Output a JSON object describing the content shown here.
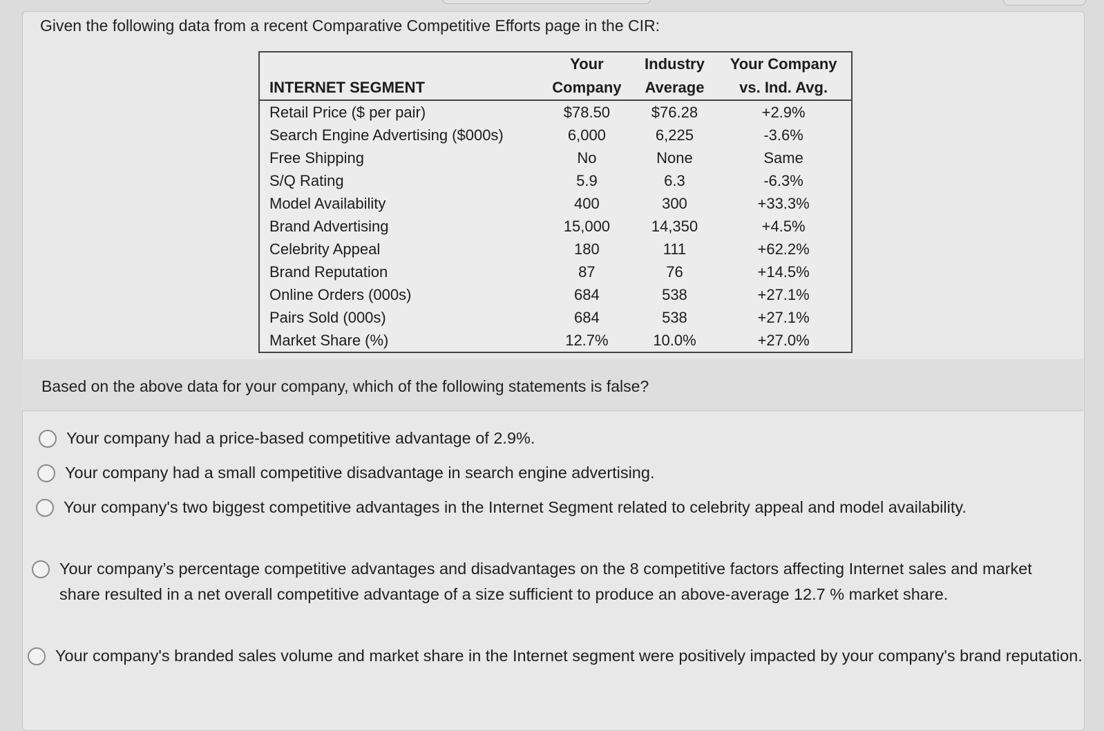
{
  "intro": "Given the following data from a recent Comparative Competitive Efforts page in the CIR:",
  "table": {
    "headers": {
      "segment": "INTERNET SEGMENT",
      "your_company_line1": "Your",
      "your_company_line2": "Company",
      "industry_line1": "Industry",
      "industry_line2": "Average",
      "vs_line1": "Your Company",
      "vs_line2": "vs. Ind. Avg."
    },
    "rows": [
      {
        "label": "Retail Price ($ per pair)",
        "yours": "$78.50",
        "industry": "$76.28",
        "vs": "+2.9%"
      },
      {
        "label": "Search Engine Advertising ($000s)",
        "yours": "6,000",
        "industry": "6,225",
        "vs": "-3.6%"
      },
      {
        "label": "Free Shipping",
        "yours": "No",
        "industry": "None",
        "vs": "Same"
      },
      {
        "label": "S/Q Rating",
        "yours": "5.9",
        "industry": "6.3",
        "vs": "-6.3%"
      },
      {
        "label": "Model Availability",
        "yours": "400",
        "industry": "300",
        "vs": "+33.3%"
      },
      {
        "label": "Brand Advertising",
        "yours": "15,000",
        "industry": "14,350",
        "vs": "+4.5%"
      },
      {
        "label": "Celebrity Appeal",
        "yours": "180",
        "industry": "111",
        "vs": "+62.2%"
      },
      {
        "label": "Brand Reputation",
        "yours": "87",
        "industry": "76",
        "vs": "+14.5%"
      },
      {
        "label": "Online Orders (000s)",
        "yours": "684",
        "industry": "538",
        "vs": "+27.1%"
      },
      {
        "label": "Pairs Sold (000s)",
        "yours": "684",
        "industry": "538",
        "vs": "+27.1%"
      },
      {
        "label": "Market Share (%)",
        "yours": "12.7%",
        "industry": "10.0%",
        "vs": "+27.0%"
      }
    ]
  },
  "question": "Based on the above data for your company, which of the following statements is false?",
  "options": [
    "Your company had a price-based competitive advantage of 2.9%.",
    "Your company had a small competitive disadvantage in search engine advertising.",
    "Your company's two biggest competitive advantages in the Internet Segment related to celebrity appeal and model availability.",
    "Your company’s percentage competitive advantages and disadvantages on the 8 competitive factors affecting Internet sales and market share resulted in a net overall competitive advantage of a size sufficient to produce an above-average 12.7 % market share.",
    "Your company's branded sales volume and market share in the Internet segment were positively impacted by your company's brand reputation."
  ]
}
